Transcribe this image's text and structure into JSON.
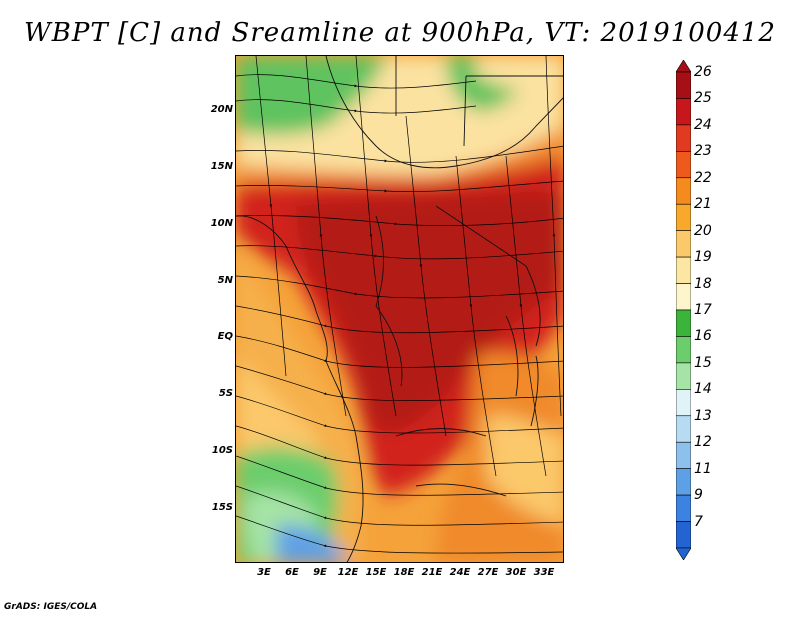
{
  "title": "WBPT [C] and Sreamline at 900hPa, VT: 2019100412",
  "footer": "GrADS: IGES/COLA",
  "map": {
    "lat_labels": [
      "20N",
      "15N",
      "10N",
      "5N",
      "EQ",
      "5S",
      "10S",
      "15S"
    ],
    "lon_labels": [
      "3E",
      "6E",
      "9E",
      "12E",
      "15E",
      "18E",
      "21E",
      "24E",
      "27E",
      "30E",
      "33E"
    ]
  },
  "colorbar": {
    "levels": [
      "26",
      "25",
      "24",
      "23",
      "22",
      "21",
      "20",
      "19",
      "18",
      "17",
      "16",
      "15",
      "14",
      "13",
      "12",
      "11",
      "9",
      "7"
    ],
    "colors": [
      "#a50f15",
      "#c8171c",
      "#e03a20",
      "#ee5a1c",
      "#f58a1e",
      "#f8a92c",
      "#fbc86a",
      "#fbe6a3",
      "#fdf5cc",
      "#3cb43c",
      "#6ccd6c",
      "#a6e3a6",
      "#e1f3f7",
      "#b6dbf3",
      "#8ec0ec",
      "#5ea0e6",
      "#3c82e0",
      "#2464d2"
    ]
  }
}
